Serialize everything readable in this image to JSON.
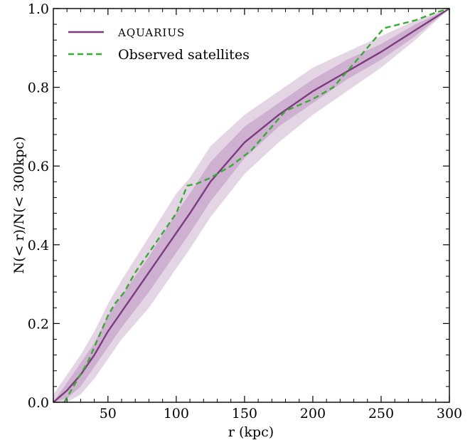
{
  "chart_data": {
    "type": "line",
    "xlabel": "r (kpc)",
    "ylabel": "N(< r)/N(< 300kpc)",
    "xlim": [
      10,
      300
    ],
    "ylim": [
      0.0,
      1.0
    ],
    "x_ticks": [
      50,
      100,
      150,
      200,
      250,
      300
    ],
    "y_ticks": [
      0.0,
      0.2,
      0.4,
      0.6,
      0.8,
      1.0
    ],
    "x_tick_labels": [
      "50",
      "100",
      "150",
      "200",
      "250",
      "300"
    ],
    "y_tick_labels": [
      "0.0",
      "0.2",
      "0.4",
      "0.6",
      "0.8",
      "1.0"
    ],
    "grid": false,
    "legend_position": "top-left",
    "series": [
      {
        "name": "AQUARIUS",
        "style": "solid",
        "color": "#7b3b7e",
        "x": [
          10,
          20,
          30,
          40,
          50,
          60,
          80,
          100,
          110,
          125,
          150,
          175,
          200,
          225,
          250,
          275,
          300
        ],
        "y": [
          0.0,
          0.03,
          0.07,
          0.12,
          0.18,
          0.23,
          0.33,
          0.43,
          0.48,
          0.56,
          0.66,
          0.73,
          0.79,
          0.84,
          0.89,
          0.945,
          1.0
        ],
        "band_1sigma_lower": [
          0.0,
          0.01,
          0.04,
          0.09,
          0.14,
          0.19,
          0.28,
          0.38,
          0.43,
          0.51,
          0.62,
          0.7,
          0.76,
          0.82,
          0.87,
          0.93,
          1.0
        ],
        "band_1sigma_upper": [
          0.0,
          0.05,
          0.1,
          0.15,
          0.22,
          0.27,
          0.37,
          0.48,
          0.53,
          0.61,
          0.7,
          0.76,
          0.82,
          0.87,
          0.91,
          0.96,
          1.0
        ],
        "band_2sigma_lower": [
          0.0,
          0.0,
          0.02,
          0.06,
          0.11,
          0.16,
          0.24,
          0.34,
          0.39,
          0.47,
          0.58,
          0.66,
          0.73,
          0.79,
          0.85,
          0.92,
          1.0
        ],
        "band_2sigma_upper": [
          0.02,
          0.07,
          0.12,
          0.18,
          0.25,
          0.31,
          0.42,
          0.53,
          0.57,
          0.65,
          0.73,
          0.79,
          0.85,
          0.89,
          0.93,
          0.97,
          1.0
        ]
      },
      {
        "name": "Observed satellites",
        "style": "dashed",
        "color": "#3aaa35",
        "x": [
          18,
          28,
          35,
          40,
          45,
          50,
          55,
          62,
          70,
          80,
          90,
          100,
          108,
          115,
          125,
          140,
          155,
          180,
          200,
          215,
          235,
          252,
          275,
          290,
          300
        ],
        "y": [
          0.0,
          0.06,
          0.1,
          0.14,
          0.18,
          0.22,
          0.25,
          0.28,
          0.33,
          0.38,
          0.43,
          0.48,
          0.55,
          0.555,
          0.57,
          0.6,
          0.64,
          0.74,
          0.77,
          0.8,
          0.88,
          0.95,
          0.97,
          0.99,
          1.0
        ]
      }
    ]
  },
  "colors": {
    "aquarius_line": "#7b3b7e",
    "aquarius_band": "#b386b5",
    "observed_line": "#3aaa35"
  }
}
